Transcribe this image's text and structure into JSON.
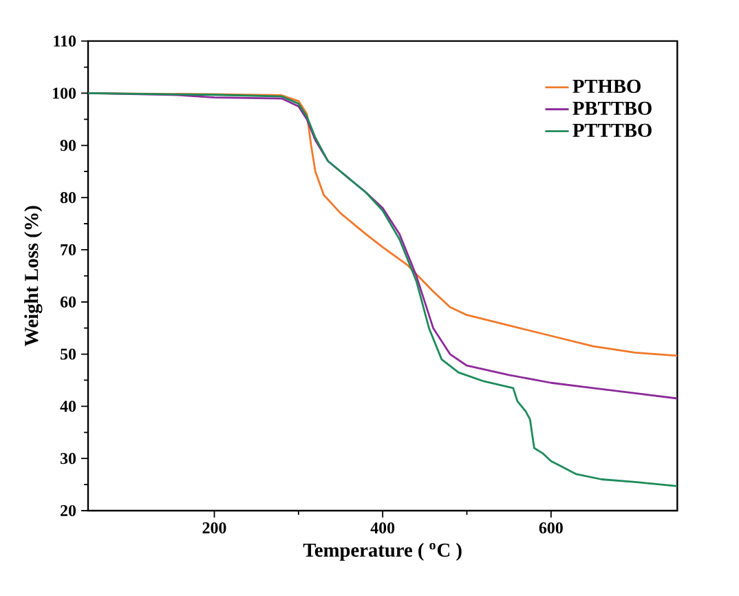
{
  "chart_data": {
    "type": "line",
    "xlabel": "Temperature ( $^{o}$C )",
    "ylabel": "Weight Loss (%)",
    "xlim": [
      50,
      750
    ],
    "ylim": [
      20,
      110
    ],
    "xticks": [
      200,
      400,
      600
    ],
    "yticks": [
      20,
      30,
      40,
      50,
      60,
      70,
      80,
      90,
      100,
      110
    ],
    "grid": false,
    "legend": "top right",
    "marker": "none",
    "line_style": "solid",
    "series": [
      {
        "name": "PTHBO",
        "color": "#f07828",
        "x": [
          50,
          200,
          280,
          300,
          310,
          315,
          320,
          330,
          350,
          380,
          400,
          430,
          460,
          480,
          500,
          550,
          600,
          650,
          700,
          750
        ],
        "values": [
          100,
          99.8,
          99.6,
          98.5,
          96,
          90,
          85,
          80.5,
          77,
          73,
          70.5,
          67,
          62,
          59,
          57.5,
          55.5,
          53.5,
          51.5,
          50.3,
          49.7
        ]
      },
      {
        "name": "PBTTBO",
        "color": "#8c2a9a",
        "x": [
          50,
          150,
          200,
          280,
          300,
          310,
          320,
          335,
          350,
          380,
          400,
          420,
          440,
          460,
          480,
          500,
          550,
          600,
          650,
          700,
          750
        ],
        "values": [
          100,
          99.7,
          99.2,
          99,
          97.5,
          95,
          91,
          87,
          85,
          81,
          78,
          73,
          65,
          55,
          50,
          47.8,
          46,
          44.5,
          43.5,
          42.5,
          41.5
        ]
      },
      {
        "name": "PTTTBO",
        "color": "#1e8a5a",
        "x": [
          50,
          200,
          280,
          300,
          310,
          320,
          335,
          350,
          380,
          400,
          420,
          440,
          455,
          470,
          490,
          520,
          555,
          560,
          570,
          575,
          580,
          590,
          600,
          612,
          630,
          660,
          700,
          750
        ],
        "values": [
          100,
          99.7,
          99.4,
          98,
          95.5,
          91.5,
          87,
          85,
          81,
          77.5,
          72,
          64,
          55,
          49,
          46.5,
          44.8,
          43.5,
          41,
          39,
          37.5,
          32,
          31,
          29.5,
          28.5,
          27,
          26,
          25.5,
          24.7
        ]
      }
    ]
  }
}
